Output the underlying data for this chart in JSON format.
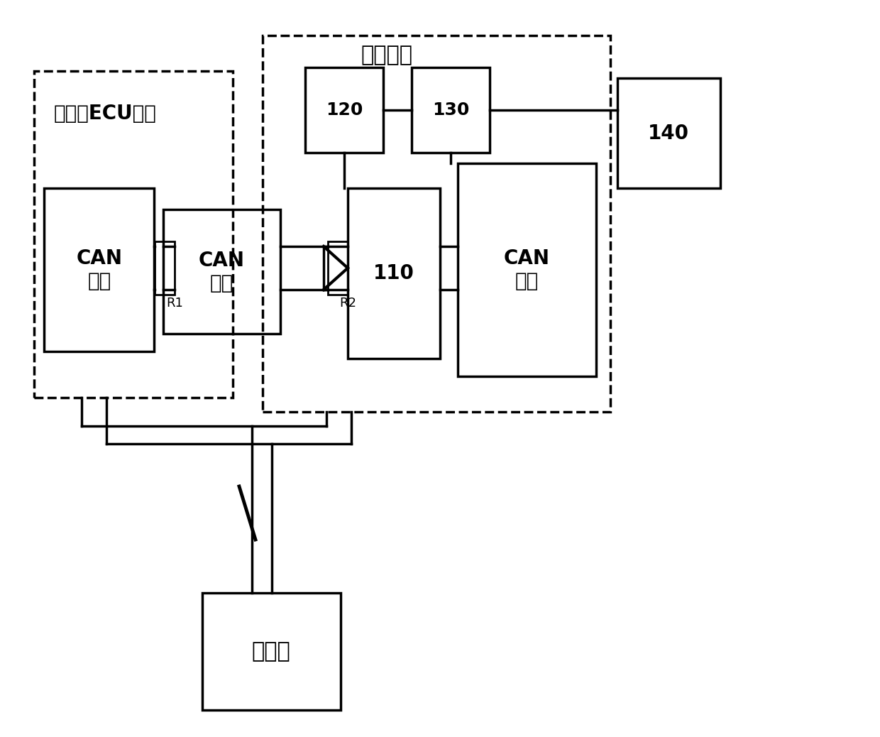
{
  "bg_color": "#ffffff",
  "line_color": "#000000",
  "ecu_label": "发动机ECU电路",
  "vt_label": "车载终端",
  "can_left_label": "CAN\n模块",
  "can_bus_label": "CAN\n总线",
  "can_right_label": "CAN\n模块",
  "label_110": "110",
  "label_120": "120",
  "label_130": "130",
  "label_140": "140",
  "label_battery": "蓄电池",
  "label_R1": "R1",
  "label_R2": "R2"
}
